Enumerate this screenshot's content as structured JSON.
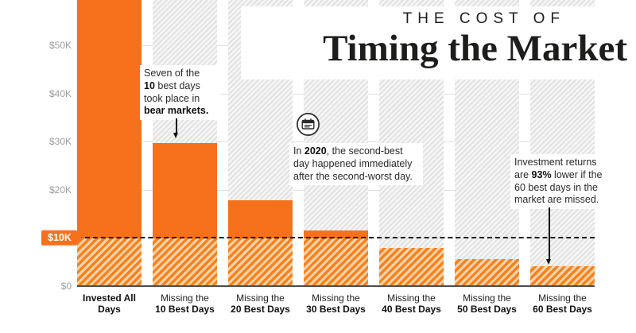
{
  "title": {
    "kicker": "THE COST OF",
    "main": "Timing the Market"
  },
  "colors": {
    "accent_orange": "#F7711D",
    "ink": "#1D1D1B",
    "tick_gray": "#9C9C9C"
  },
  "y_axis": {
    "ticks": [
      {
        "label": "$50K",
        "value": 50000
      },
      {
        "label": "$40K",
        "value": 40000
      },
      {
        "label": "$30K",
        "value": 30000
      },
      {
        "label": "$20K",
        "value": 20000
      },
      {
        "label": "$0",
        "value": 0
      }
    ],
    "highlight_label": "$10K",
    "highlight_value": 10000
  },
  "chart_data": {
    "type": "bar",
    "title": "The Cost of Timing the Market",
    "categories": [
      "Invested All Days",
      "Missing the 10 Best Days",
      "Missing the 20 Best Days",
      "Missing the 30 Best Days",
      "Missing the 40 Best Days",
      "Missing the 50 Best Days",
      "Missing the 60 Best Days"
    ],
    "values": [
      65000,
      29700,
      17800,
      11500,
      8000,
      5700,
      4200
    ],
    "ylim": [
      0,
      59500
    ],
    "first_bar_clipped_at_top": true,
    "threshold_line_value": 10000,
    "grid": "horizontal",
    "legend": "none",
    "xlabel": "",
    "ylabel": ""
  },
  "x_labels_rich": [
    {
      "lines": [
        [
          {
            "t": "Invested All Days",
            "b": true
          }
        ]
      ]
    },
    {
      "lines": [
        [
          {
            "t": "Missing the"
          }
        ],
        [
          {
            "t": "10 Best Days",
            "b": true
          }
        ]
      ]
    },
    {
      "lines": [
        [
          {
            "t": "Missing the"
          }
        ],
        [
          {
            "t": "20 Best Days",
            "b": true
          }
        ]
      ]
    },
    {
      "lines": [
        [
          {
            "t": "Missing the"
          }
        ],
        [
          {
            "t": "30 Best Days",
            "b": true
          }
        ]
      ]
    },
    {
      "lines": [
        [
          {
            "t": "Missing the"
          }
        ],
        [
          {
            "t": "40 Best Days",
            "b": true
          }
        ]
      ]
    },
    {
      "lines": [
        [
          {
            "t": "Missing the"
          }
        ],
        [
          {
            "t": "50 Best Days",
            "b": true
          }
        ]
      ]
    },
    {
      "lines": [
        [
          {
            "t": "Missing the"
          }
        ],
        [
          {
            "t": "60 Best Days",
            "b": true
          }
        ]
      ]
    }
  ],
  "annotations": [
    {
      "id": "bear",
      "lines": [
        [
          {
            "t": "Seven of the"
          }
        ],
        [
          {
            "t": "10",
            "b": true
          },
          {
            "t": " best days"
          }
        ],
        [
          {
            "t": "took place in"
          }
        ],
        [
          {
            "t": "bear markets.",
            "b": true
          }
        ]
      ]
    },
    {
      "id": "2020",
      "lines": [
        [
          {
            "t": "In "
          },
          {
            "t": "2020",
            "b": true
          },
          {
            "t": ", the second-best"
          }
        ],
        [
          {
            "t": "day happened immediately"
          }
        ],
        [
          {
            "t": "after the second-worst day."
          }
        ]
      ]
    },
    {
      "id": "93",
      "lines": [
        [
          {
            "t": "Investment returns"
          }
        ],
        [
          {
            "t": "are "
          },
          {
            "t": "93%",
            "b": true
          },
          {
            "t": " lower if the"
          }
        ],
        [
          {
            "t": "60 best days in the"
          }
        ],
        [
          {
            "t": "market are missed."
          }
        ]
      ]
    }
  ]
}
